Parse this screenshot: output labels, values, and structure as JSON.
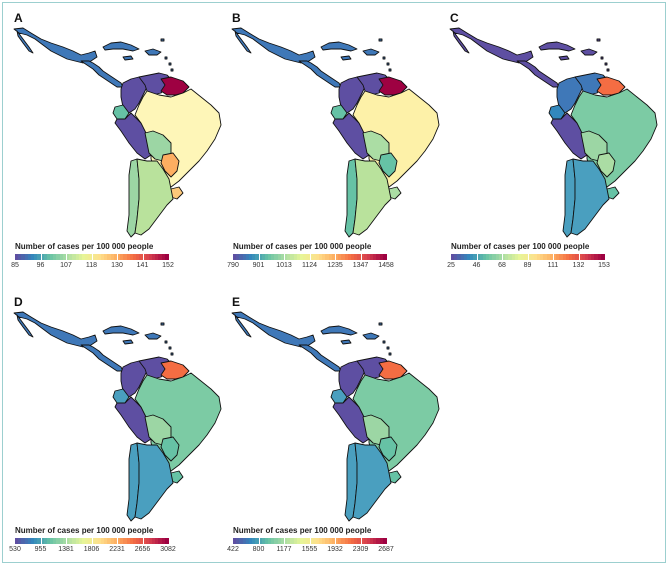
{
  "colorscale": [
    "#5e4fa2",
    "#3288bd",
    "#66c2a5",
    "#abdda4",
    "#e6f598",
    "#fee08b",
    "#fdae61",
    "#f46d43",
    "#d53e4f",
    "#9e0142"
  ],
  "panels": [
    {
      "letter": "A",
      "legend_title": "Number of cases per 100 000 people",
      "ticks": [
        "85",
        "96",
        "107",
        "118",
        "130",
        "141",
        "152"
      ],
      "colors": {
        "mexico": "#3f78b8",
        "central_america": "#3f78b8",
        "caribbean": "#3f78b8",
        "cuba": "#3f78b8",
        "hispaniola": "#3f78b8",
        "jamaica": "#3f78b8",
        "small_islands": "#3f78b8",
        "venezuela": "#5e4fa2",
        "guianas": "#9e0142",
        "colombia": "#5e4fa2",
        "ecuador": "#66c2a5",
        "peru": "#5e4fa2",
        "brazil": "#fef6b8",
        "bolivia": "#9cd6a4",
        "paraguay": "#fdae61",
        "uruguay": "#fdc97a",
        "argentina": "#b9e29c",
        "chile": "#9cd6a4"
      }
    },
    {
      "letter": "B",
      "legend_title": "Number of cases per 100 000 people",
      "ticks": [
        "790",
        "901",
        "1013",
        "1124",
        "1235",
        "1347",
        "1458"
      ],
      "colors": {
        "mexico": "#3f78b8",
        "central_america": "#3f78b8",
        "caribbean": "#3f78b8",
        "cuba": "#3f78b8",
        "hispaniola": "#3f78b8",
        "jamaica": "#3f78b8",
        "small_islands": "#3f78b8",
        "venezuela": "#5e4fa2",
        "guianas": "#9e0142",
        "colombia": "#5e4fa2",
        "ecuador": "#66c2a5",
        "peru": "#5e4fa2",
        "brazil": "#fdf1a8",
        "bolivia": "#abdda4",
        "paraguay": "#66c2a5",
        "uruguay": "#abdda4",
        "argentina": "#b9e29c",
        "chile": "#66c2a5"
      }
    },
    {
      "letter": "C",
      "legend_title": "Number of cases per 100 000 people",
      "ticks": [
        "25",
        "46",
        "68",
        "89",
        "111",
        "132",
        "153"
      ],
      "colors": {
        "mexico": "#5e4fa2",
        "central_america": "#5e4fa2",
        "caribbean": "#5e4fa2",
        "cuba": "#5e4fa2",
        "hispaniola": "#5e4fa2",
        "jamaica": "#5e4fa2",
        "small_islands": "#5e4fa2",
        "venezuela": "#3f78b8",
        "guianas": "#f46d43",
        "colombia": "#3f78b8",
        "ecuador": "#3288bd",
        "peru": "#5e4fa2",
        "brazil": "#7ccba4",
        "bolivia": "#9cd6a4",
        "paraguay": "#abdda4",
        "uruguay": "#66c2a5",
        "argentina": "#4a9fbf",
        "chile": "#4a9fbf"
      }
    },
    {
      "letter": "D",
      "legend_title": "Number of cases per 100 000 people",
      "ticks": [
        "530",
        "955",
        "1381",
        "1806",
        "2231",
        "2656",
        "3082"
      ],
      "colors": {
        "mexico": "#3f78b8",
        "central_america": "#3f78b8",
        "caribbean": "#3f78b8",
        "cuba": "#3f78b8",
        "hispaniola": "#3f78b8",
        "jamaica": "#3f78b8",
        "small_islands": "#3f78b8",
        "venezuela": "#5e4fa2",
        "guianas": "#f46d43",
        "colombia": "#5e4fa2",
        "ecuador": "#4a9fbf",
        "peru": "#5e4fa2",
        "brazil": "#7ccba4",
        "bolivia": "#9cd6a4",
        "paraguay": "#66c2a5",
        "uruguay": "#66c2a5",
        "argentina": "#4a9fbf",
        "chile": "#4a9fbf"
      }
    },
    {
      "letter": "E",
      "legend_title": "Number of cases per 100 000 people",
      "ticks": [
        "422",
        "800",
        "1177",
        "1555",
        "1932",
        "2309",
        "2687"
      ],
      "colors": {
        "mexico": "#3f78b8",
        "central_america": "#3f78b8",
        "caribbean": "#3f78b8",
        "cuba": "#3f78b8",
        "hispaniola": "#3f78b8",
        "jamaica": "#3f78b8",
        "small_islands": "#3f78b8",
        "venezuela": "#5e4fa2",
        "guianas": "#f46d43",
        "colombia": "#5e4fa2",
        "ecuador": "#4a9fbf",
        "peru": "#5e4fa2",
        "brazil": "#7ccba4",
        "bolivia": "#9cd6a4",
        "paraguay": "#66c2a5",
        "uruguay": "#66c2a5",
        "argentina": "#4a9fbf",
        "chile": "#4a9fbf"
      }
    }
  ]
}
